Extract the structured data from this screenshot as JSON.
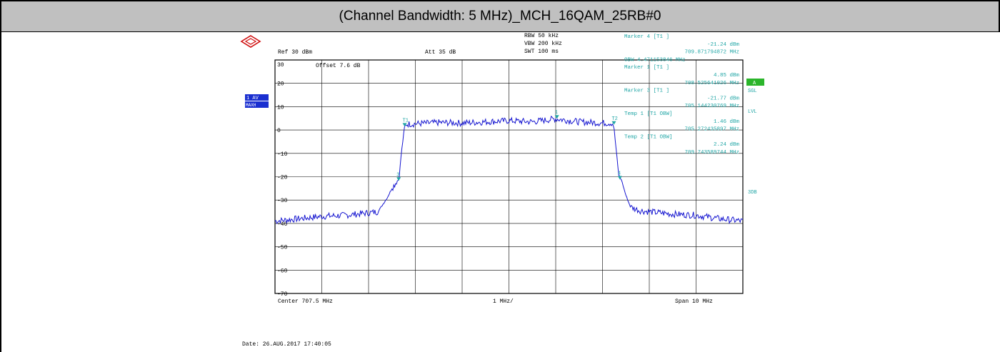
{
  "title": "(Channel Bandwidth: 5 MHz)_MCH_16QAM_25RB#0",
  "colors": {
    "trace": "#1515d0",
    "marker": "#1fa5a5",
    "grid": "#000000",
    "badge": "#1a2fd0",
    "badge_green": "#2bb52b"
  },
  "instrument": {
    "ref_label": "Ref 30 dBm",
    "att_label": "Att 35 dB",
    "rbw_label": "RBW 50 kHz",
    "vbw_label": "VBW 200 kHz",
    "swt_label": "SWT 100 ms",
    "offset_label": "Offset 7.6 dB",
    "badge_av": "1 AV",
    "badge_maxh": "MAXH",
    "badge_a": "A",
    "side_sgl": "SGL",
    "side_lvl": "LVL",
    "side_3db": "3DB"
  },
  "marker_table": [
    "Marker 4 [T1 ]",
    "-21.24 dBm",
    "709.871794872 MHz",
    "OBW 4.471153846 MHz",
    "Marker 1 [T1 ]",
    "4.85 dBm",
    "708.525641026 MHz",
    "Marker 3 [T1 ]",
    "-21.77 dBm",
    "705.144230769 MHz",
    "Temp 1 [T1 OBW]",
    "1.46 dBm",
    "705.272435897 MHz",
    "Temp 2 [T1 OBW]",
    "2.24 dBm",
    "709.743589744 MHz"
  ],
  "footer": {
    "center_label": "Center 707.5 MHz",
    "div_label": "1 MHz/",
    "span_label": "Span 10 MHz",
    "date_label": "Date: 26.AUG.2017 17:40:05"
  },
  "chart_data": {
    "type": "line",
    "xlabel": "",
    "ylabel": "",
    "xlim": [
      702.5,
      712.5
    ],
    "ylim": [
      -70,
      30
    ],
    "grid": true,
    "y_ticks": [
      "30",
      "20",
      "10",
      "0",
      "-10",
      "-20",
      "-30",
      "-40",
      "-50",
      "-60",
      "-70"
    ],
    "series": [
      {
        "x": [
          702.5,
          703.0,
          703.5,
          704.0,
          704.5,
          704.7,
          704.9,
          705.0,
          705.1,
          705.15,
          705.2,
          705.27,
          705.3,
          706.0,
          706.5,
          707.0,
          707.5,
          708.0,
          708.5,
          709.0,
          709.5,
          709.7,
          709.74,
          709.8,
          709.85,
          709.9,
          710.0,
          710.1,
          710.3,
          710.5,
          711.0,
          711.5,
          712.0,
          712.5
        ],
        "y": [
          -39,
          -38,
          -37,
          -36.5,
          -35.5,
          -35,
          -29,
          -25,
          -22,
          -21,
          -10,
          1.5,
          2.5,
          3.2,
          3.0,
          3.5,
          4.0,
          3.5,
          4.8,
          3.5,
          3.0,
          3.0,
          2.2,
          -10,
          -20,
          -21,
          -28,
          -33,
          -34.5,
          -35,
          -36,
          -36.5,
          -38,
          -39
        ]
      }
    ],
    "markers": [
      {
        "label": "T1",
        "x": 705.272,
        "y": 1.46
      },
      {
        "label": "3",
        "x": 705.144,
        "y": -21.77
      },
      {
        "label": "1",
        "x": 708.526,
        "y": 4.85
      },
      {
        "label": "T2",
        "x": 709.744,
        "y": 2.24
      },
      {
        "label": "4",
        "x": 709.872,
        "y": -21.24
      }
    ]
  }
}
